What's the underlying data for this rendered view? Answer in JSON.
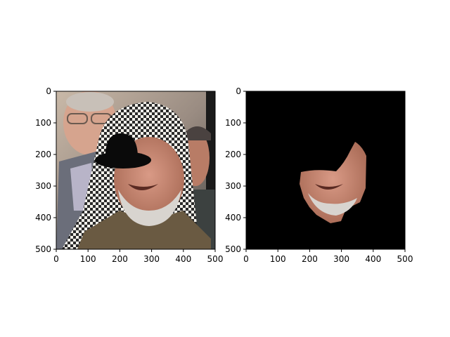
{
  "figure": {
    "background": "#ffffff",
    "panels": [
      {
        "name": "photo-with-hat",
        "content": "portrait photograph, face masked by a black bowler hat",
        "x_ticks": [
          "0",
          "100",
          "200",
          "300",
          "400",
          "500"
        ],
        "y_ticks": [
          "0",
          "100",
          "200",
          "300",
          "400",
          "500"
        ],
        "xlim": [
          0,
          500
        ],
        "ylim": [
          500,
          0
        ]
      },
      {
        "name": "face-segment",
        "content": "segmented lower face region on black background",
        "x_ticks": [
          "0",
          "100",
          "200",
          "300",
          "400",
          "500"
        ],
        "y_ticks": [
          "0",
          "100",
          "200",
          "300",
          "400",
          "500"
        ],
        "xlim": [
          0,
          500
        ],
        "ylim": [
          500,
          0
        ]
      }
    ]
  }
}
